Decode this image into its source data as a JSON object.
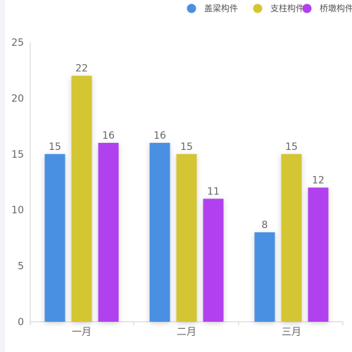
{
  "chart_data": {
    "type": "bar",
    "categories": [
      "一月",
      "二月",
      "三月"
    ],
    "series": [
      {
        "name": "盖梁构件",
        "color": "#4a90e2",
        "values": [
          15,
          16,
          8
        ]
      },
      {
        "name": "支柱构件",
        "color": "#d4c531",
        "values": [
          22,
          15,
          15
        ]
      },
      {
        "name": "桥墩构件",
        "color": "#b140ee",
        "values": [
          16,
          11,
          12
        ]
      }
    ],
    "ylim": [
      0,
      25
    ],
    "yticks": [
      0,
      5,
      10,
      15,
      20,
      25
    ],
    "legend_position": "top-right",
    "grid": false,
    "data_labels": true,
    "title": "",
    "xlabel": "",
    "ylabel": ""
  },
  "colors": {
    "axis_line": "#cfcfcf",
    "text": "#666666",
    "background": "#ffffff",
    "left_strip": "#f3f4f8"
  }
}
